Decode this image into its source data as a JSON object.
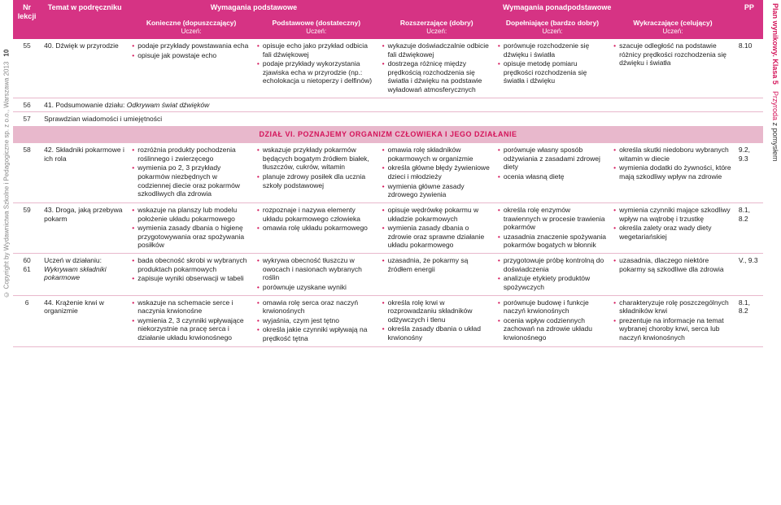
{
  "sideLeft": {
    "copyright": "© Copyright by Wydawnictwa Szkolne i Pedagogiczne sp. z o.o., Warszawa 2013",
    "pageNum": "10"
  },
  "sideRight": {
    "plan": "Plan wynikowy. Klasa 5",
    "p5": "Przyroda",
    "pz": "z pomysłem"
  },
  "headers": {
    "group1": {
      "podstawowe": "Wymagania podstawowe",
      "ponad": "Wymagania ponadpodstawowe"
    },
    "group2": {
      "nr": "Nr lekcji",
      "temat": "Temat w podręczniku",
      "kon": "Konieczne (dopuszczający)",
      "pod": "Podstawowe (dostateczny)",
      "roz": "Rozszerzające (dobry)",
      "dop": "Dopełniające (bardzo dobry)",
      "wyk": "Wykraczające (celujący)",
      "pp": "PP",
      "uczen": "Uczeń:"
    }
  },
  "sectionTitle": "DZIAŁ VI. POZNAJEMY ORGANIZM CZŁOWIEKA I JEGO DZIAŁANIE",
  "rows": [
    {
      "nr": "55",
      "temat": "40. Dźwięk w przyrodzie",
      "kon": [
        "podaje przykłady powstawania echa",
        "opisuje jak powstaje echo"
      ],
      "pod": [
        "opisuje echo jako przykład odbicia fali dźwiękowej",
        "podaje przykłady wykorzystania zjawiska echa w przyrodzie (np.: echolokacja u nietoperzy i delfinów)"
      ],
      "roz": [
        "wykazuje doświadczalnie odbicie fali dźwiękowej",
        "dostrzega różnicę między prędkością rozchodzenia się światła i dźwięku na podstawie wyładowań atmosferycznych"
      ],
      "dop": [
        "porównuje rozchodzenie się dźwięku i światła",
        "opisuje metodę pomiaru prędkości rozchodzenia się światła i dźwięku"
      ],
      "wyk": [
        "szacuje odległość na podstawie różnicy prędkości rozchodzenia się dźwięku i światła"
      ],
      "pp": "8.10"
    },
    {
      "nr": "56",
      "full": "41. Podsumowanie działu: Odkrywam świat dźwięków",
      "italic": "Odkrywam świat dźwięków"
    },
    {
      "nr": "57",
      "full": "Sprawdzian wiadomości i umiejętności"
    },
    {
      "section": true
    },
    {
      "nr": "58",
      "temat": "42. Składniki pokarmowe i ich rola",
      "kon": [
        "rozróżnia produkty pochodzenia roślinnego i zwierzęcego",
        "wymienia po 2, 3 przykłady pokarmów niezbędnych w codziennej diecie oraz pokarmów szkodliwych dla zdrowia"
      ],
      "pod": [
        "wskazuje przykłady pokarmów będących bogatym źródłem białek, tłuszczów, cukrów, witamin",
        "planuje zdrowy posiłek dla ucznia szkoły podstawowej"
      ],
      "roz": [
        "omawia rolę składników pokarmowych w organizmie",
        "określa główne błędy żywieniowe dzieci i młodzieży",
        "wymienia główne zasady zdrowego żywienia"
      ],
      "dop": [
        "porównuje własny sposób odżywiania z zasadami zdrowej diety",
        "ocenia własną dietę"
      ],
      "wyk": [
        "określa skutki niedoboru wybranych witamin w diecie",
        "wymienia dodatki do żywności, które mają szkodliwy wpływ na zdrowie"
      ],
      "pp": "9.2, 9.3"
    },
    {
      "nr": "59",
      "temat": "43. Droga, jaką przebywa pokarm",
      "kon": [
        "wskazuje na planszy lub modelu położenie układu pokarmowego",
        "wymienia zasady dbania o higienę przygotowywania oraz spożywania posiłków"
      ],
      "pod": [
        "rozpoznaje i nazywa elementy układu pokarmowego człowieka",
        "omawia rolę układu pokarmowego"
      ],
      "roz": [
        "opisuje wędrówkę pokarmu w układzie pokarmowych",
        "wymienia zasady dbania o zdrowie oraz sprawne działanie układu pokarmowego"
      ],
      "dop": [
        "określa rolę enzymów trawiennych w procesie trawienia pokarmów",
        "uzasadnia znaczenie spożywania pokarmów bogatych w błonnik"
      ],
      "wyk": [
        "wymienia czynniki mające szkodliwy wpływ na wątrobę i trzustkę",
        "określa zalety oraz wady diety wegetariańskiej"
      ],
      "pp": "8.1, 8.2"
    },
    {
      "nr": "60 61",
      "tematPrefix": "Uczeń w działaniu: ",
      "tematItalic": "Wykrywam składniki pokarmowe",
      "kon": [
        "bada obecność skrobi w wybranych produktach pokarmowych",
        "zapisuje wyniki obserwacji w tabeli"
      ],
      "pod": [
        "wykrywa obecność tłuszczu w owocach i nasionach wybranych roślin",
        "porównuje uzyskane wyniki"
      ],
      "roz": [
        "uzasadnia, że pokarmy są źródłem energii"
      ],
      "dop": [
        "przygotowuje próbę kontrolną do doświadczenia",
        "analizuje etykiety produktów spożywczych"
      ],
      "wyk": [
        "uzasadnia, dlaczego niektóre pokarmy są szkodliwe dla zdrowia"
      ],
      "pp": "V., 9.3"
    },
    {
      "nr": "6",
      "temat": "44. Krążenie krwi w organizmie",
      "kon": [
        "wskazuje na schemacie serce i naczynia krwionośne",
        "wymienia 2, 3 czynniki wpływające niekorzystnie na pracę serca i działanie układu krwionośnego"
      ],
      "pod": [
        "omawia rolę serca oraz naczyń krwionośnych",
        "wyjaśnia, czym jest tętno",
        "określa jakie czynniki wpływają na prędkość tętna"
      ],
      "roz": [
        "określa rolę krwi w rozprowadzaniu składników odżywczych i tlenu",
        "określa zasady dbania o układ krwionośny"
      ],
      "dop": [
        "porównuje budowę i funkcje naczyń krwionośnych",
        "ocenia wpływ codziennych zachowań na zdrowie układu krwionośnego"
      ],
      "wyk": [
        "charakteryzuje rolę poszczególnych składników krwi",
        "prezentuje na informacje na temat wybranej choroby krwi, serca lub naczyń krwionośnych"
      ],
      "pp": "8.1, 8.2"
    }
  ],
  "colors": {
    "primary": "#d63384",
    "section": "#e8b8cc"
  }
}
